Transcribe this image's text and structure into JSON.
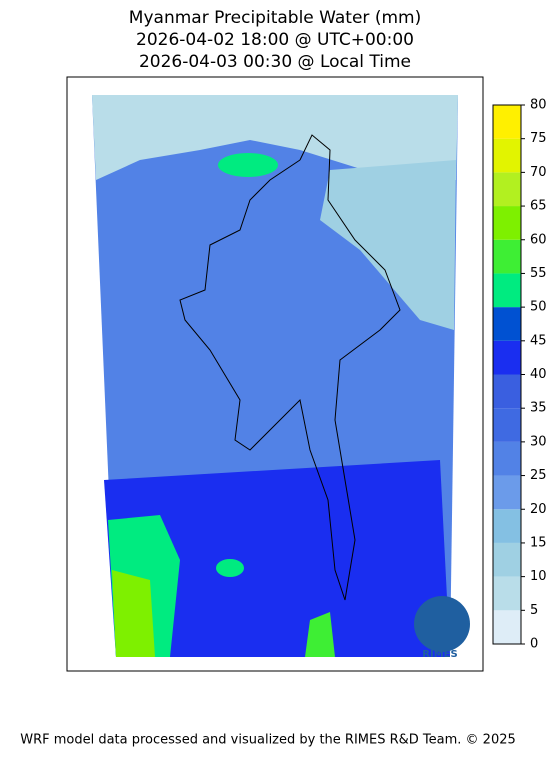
{
  "header": {
    "title_lines": [
      "Myanmar Precipitable Water (mm)",
      "2026-04-02 18:00 @ UTC+00:00",
      "2026-04-03 00:30 @ Local Time"
    ]
  },
  "colorbar": {
    "ticks": [
      0,
      5,
      10,
      15,
      20,
      25,
      30,
      35,
      40,
      45,
      50,
      55,
      60,
      65,
      70,
      75,
      80
    ],
    "colors": [
      "#deedf7",
      "#b9dde9",
      "#9fd0e3",
      "#84c0e3",
      "#6b9bea",
      "#5282e6",
      "#3f6ae2",
      "#3a5fe0",
      "#1a2ef0",
      "#0051d2",
      "#00eb80",
      "#3eee34",
      "#7ef000",
      "#b2f020",
      "#e2f400",
      "#fff000"
    ]
  },
  "logo_text": "RIMES",
  "footer": "WRF model data processed and visualized by the RIMES R&D Team. © 2025"
}
